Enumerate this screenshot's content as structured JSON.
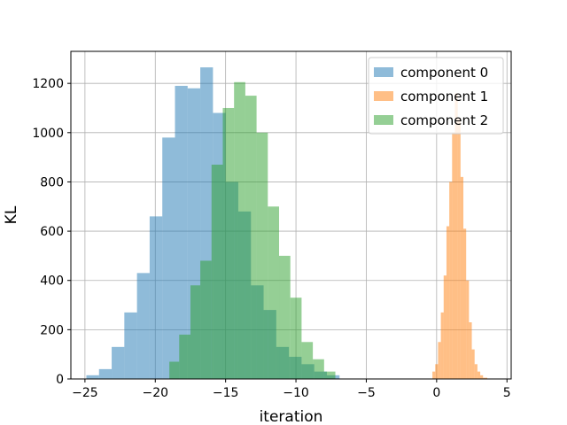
{
  "chart_data": {
    "type": "bar",
    "title": "",
    "xlabel": "iteration",
    "ylabel": "KL",
    "xlim": [
      -26,
      5.3
    ],
    "ylim": [
      0,
      1330
    ],
    "xticks": [
      -25,
      -20,
      -15,
      -10,
      -5,
      0,
      5
    ],
    "xtick_labels": [
      "−25",
      "−20",
      "−15",
      "−10",
      "−5",
      "0",
      "5"
    ],
    "yticks": [
      0,
      200,
      400,
      600,
      800,
      1000,
      1200
    ],
    "ytick_labels": [
      "0",
      "200",
      "400",
      "600",
      "800",
      "1000",
      "1200"
    ],
    "grid": true,
    "legend_position": "top-right",
    "bar_alpha": 0.5,
    "series": [
      {
        "name": "component 0",
        "color": "#1f77b4",
        "bins": [
          [
            -24.9,
            -24.0,
            15
          ],
          [
            -24.0,
            -23.1,
            40
          ],
          [
            -23.1,
            -22.2,
            130
          ],
          [
            -22.2,
            -21.3,
            270
          ],
          [
            -21.3,
            -20.4,
            430
          ],
          [
            -20.4,
            -19.5,
            660
          ],
          [
            -19.5,
            -18.6,
            980
          ],
          [
            -18.6,
            -17.7,
            1190
          ],
          [
            -17.7,
            -16.8,
            1180
          ],
          [
            -16.8,
            -15.9,
            1265
          ],
          [
            -15.9,
            -15.0,
            1080
          ],
          [
            -15.0,
            -14.1,
            800
          ],
          [
            -14.1,
            -13.2,
            680
          ],
          [
            -13.2,
            -12.3,
            380
          ],
          [
            -12.3,
            -11.4,
            280
          ],
          [
            -11.4,
            -10.5,
            130
          ],
          [
            -10.5,
            -9.6,
            90
          ],
          [
            -9.6,
            -8.7,
            60
          ],
          [
            -8.7,
            -7.8,
            30
          ],
          [
            -7.8,
            -6.9,
            15
          ]
        ]
      },
      {
        "name": "component 1",
        "color": "#ff7f0e",
        "bins": [
          [
            -0.3,
            -0.1,
            30
          ],
          [
            -0.1,
            0.1,
            60
          ],
          [
            0.1,
            0.3,
            150
          ],
          [
            0.3,
            0.5,
            270
          ],
          [
            0.5,
            0.7,
            420
          ],
          [
            0.7,
            0.9,
            620
          ],
          [
            0.9,
            1.1,
            800
          ],
          [
            1.1,
            1.3,
            1000
          ],
          [
            1.3,
            1.5,
            1160
          ],
          [
            1.5,
            1.7,
            1060
          ],
          [
            1.7,
            1.9,
            820
          ],
          [
            1.9,
            2.1,
            610
          ],
          [
            2.1,
            2.3,
            400
          ],
          [
            2.3,
            2.5,
            230
          ],
          [
            2.5,
            2.7,
            120
          ],
          [
            2.7,
            2.9,
            60
          ],
          [
            2.9,
            3.1,
            30
          ],
          [
            3.1,
            3.3,
            15
          ],
          [
            3.3,
            3.6,
            5
          ]
        ]
      },
      {
        "name": "component 2",
        "color": "#2ca02c",
        "bins": [
          [
            -19.0,
            -18.3,
            70
          ],
          [
            -18.3,
            -17.5,
            180
          ],
          [
            -17.5,
            -16.8,
            380
          ],
          [
            -16.8,
            -16.0,
            480
          ],
          [
            -16.0,
            -15.2,
            870
          ],
          [
            -15.2,
            -14.4,
            1100
          ],
          [
            -14.4,
            -13.6,
            1205
          ],
          [
            -13.6,
            -12.8,
            1150
          ],
          [
            -12.8,
            -12.0,
            1000
          ],
          [
            -12.0,
            -11.2,
            700
          ],
          [
            -11.2,
            -10.4,
            500
          ],
          [
            -10.4,
            -9.6,
            330
          ],
          [
            -9.6,
            -8.8,
            150
          ],
          [
            -8.8,
            -8.0,
            80
          ],
          [
            -8.0,
            -7.2,
            30
          ]
        ]
      }
    ]
  }
}
